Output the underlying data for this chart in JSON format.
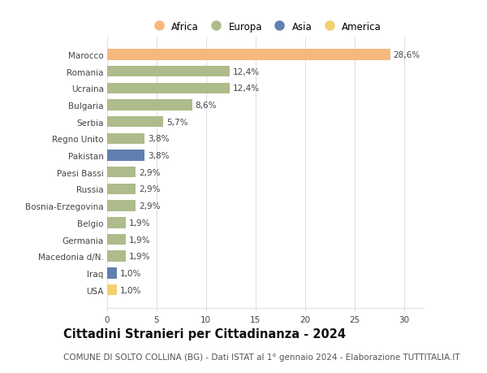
{
  "countries": [
    "Marocco",
    "Romania",
    "Ucraina",
    "Bulgaria",
    "Serbia",
    "Regno Unito",
    "Pakistan",
    "Paesi Bassi",
    "Russia",
    "Bosnia-Erzegovina",
    "Belgio",
    "Germania",
    "Macedonia d/N.",
    "Iraq",
    "USA"
  ],
  "values": [
    28.6,
    12.4,
    12.4,
    8.6,
    5.7,
    3.8,
    3.8,
    2.9,
    2.9,
    2.9,
    1.9,
    1.9,
    1.9,
    1.0,
    1.0
  ],
  "labels": [
    "28,6%",
    "12,4%",
    "12,4%",
    "8,6%",
    "5,7%",
    "3,8%",
    "3,8%",
    "2,9%",
    "2,9%",
    "2,9%",
    "1,9%",
    "1,9%",
    "1,9%",
    "1,0%",
    "1,0%"
  ],
  "continents": [
    "Africa",
    "Europa",
    "Europa",
    "Europa",
    "Europa",
    "Europa",
    "Asia",
    "Europa",
    "Europa",
    "Europa",
    "Europa",
    "Europa",
    "Europa",
    "Asia",
    "America"
  ],
  "colors": {
    "Africa": "#F5B97F",
    "Europa": "#AEBB8A",
    "Asia": "#6080B0",
    "America": "#F2D070"
  },
  "legend_order": [
    "Africa",
    "Europa",
    "Asia",
    "America"
  ],
  "title": "Cittadini Stranieri per Cittadinanza - 2024",
  "subtitle": "COMUNE DI SOLTO COLLINA (BG) - Dati ISTAT al 1° gennaio 2024 - Elaborazione TUTTITALIA.IT",
  "xlim": [
    0,
    32
  ],
  "xticks": [
    0,
    5,
    10,
    15,
    20,
    25,
    30
  ],
  "background_color": "#ffffff",
  "grid_color": "#e0e0e0",
  "bar_height": 0.65,
  "label_fontsize": 7.5,
  "tick_fontsize": 7.5,
  "legend_fontsize": 8.5,
  "title_fontsize": 10.5,
  "subtitle_fontsize": 7.5
}
